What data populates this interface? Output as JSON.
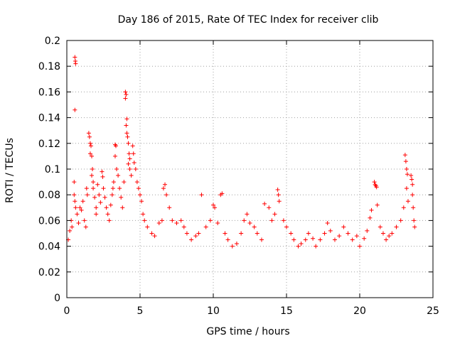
{
  "chart_data": {
    "type": "scatter",
    "title": "Day 186 of 2015, Rate Of TEC Index for receiver clib",
    "xlabel": "GPS time / hours",
    "ylabel": "ROTI / TECUs",
    "xlim": [
      0,
      25
    ],
    "ylim": [
      0,
      0.2
    ],
    "xticks": [
      0,
      5,
      10,
      15,
      20,
      25
    ],
    "yticks": [
      0,
      0.02,
      0.04,
      0.06,
      0.08,
      0.1,
      0.12,
      0.14,
      0.16,
      0.18,
      0.2
    ],
    "grid": true,
    "marker": "plus",
    "color": "#ff0000",
    "series": [
      {
        "points": [
          [
            0.1,
            0.045
          ],
          [
            0.2,
            0.052
          ],
          [
            0.3,
            0.06
          ],
          [
            0.35,
            0.055
          ],
          [
            0.5,
            0.09
          ],
          [
            0.5,
            0.08
          ],
          [
            0.55,
            0.075
          ],
          [
            0.55,
            0.187
          ],
          [
            0.58,
            0.184
          ],
          [
            0.6,
            0.182
          ],
          [
            0.55,
            0.146
          ],
          [
            0.6,
            0.07
          ],
          [
            0.7,
            0.065
          ],
          [
            0.8,
            0.058
          ],
          [
            0.9,
            0.07
          ],
          [
            1.0,
            0.068
          ],
          [
            1.1,
            0.075
          ],
          [
            1.2,
            0.06
          ],
          [
            1.3,
            0.055
          ],
          [
            1.35,
            0.085
          ],
          [
            1.4,
            0.08
          ],
          [
            1.5,
            0.128
          ],
          [
            1.55,
            0.125
          ],
          [
            1.6,
            0.12
          ],
          [
            1.65,
            0.118
          ],
          [
            1.6,
            0.112
          ],
          [
            1.7,
            0.11
          ],
          [
            1.75,
            0.1
          ],
          [
            1.7,
            0.095
          ],
          [
            1.8,
            0.09
          ],
          [
            1.8,
            0.085
          ],
          [
            1.9,
            0.078
          ],
          [
            2.0,
            0.07
          ],
          [
            2.0,
            0.065
          ],
          [
            2.1,
            0.088
          ],
          [
            2.2,
            0.08
          ],
          [
            2.3,
            0.074
          ],
          [
            2.4,
            0.098
          ],
          [
            2.45,
            0.094
          ],
          [
            2.5,
            0.085
          ],
          [
            2.6,
            0.078
          ],
          [
            2.7,
            0.07
          ],
          [
            2.8,
            0.065
          ],
          [
            2.9,
            0.06
          ],
          [
            3.0,
            0.072
          ],
          [
            3.1,
            0.08
          ],
          [
            3.15,
            0.085
          ],
          [
            3.2,
            0.09
          ],
          [
            3.3,
            0.119
          ],
          [
            3.35,
            0.118
          ],
          [
            3.3,
            0.11
          ],
          [
            3.4,
            0.1
          ],
          [
            3.5,
            0.095
          ],
          [
            3.6,
            0.085
          ],
          [
            3.7,
            0.078
          ],
          [
            3.8,
            0.07
          ],
          [
            3.9,
            0.09
          ],
          [
            4.0,
            0.16
          ],
          [
            4.05,
            0.158
          ],
          [
            4.0,
            0.155
          ],
          [
            4.1,
            0.139
          ],
          [
            4.05,
            0.134
          ],
          [
            4.1,
            0.128
          ],
          [
            4.15,
            0.125
          ],
          [
            4.2,
            0.12
          ],
          [
            4.25,
            0.112
          ],
          [
            4.3,
            0.108
          ],
          [
            4.2,
            0.104
          ],
          [
            4.3,
            0.1
          ],
          [
            4.4,
            0.095
          ],
          [
            4.5,
            0.118
          ],
          [
            4.55,
            0.112
          ],
          [
            4.6,
            0.105
          ],
          [
            4.7,
            0.1
          ],
          [
            4.8,
            0.09
          ],
          [
            4.9,
            0.085
          ],
          [
            5.0,
            0.08
          ],
          [
            5.1,
            0.075
          ],
          [
            5.2,
            0.065
          ],
          [
            5.3,
            0.06
          ],
          [
            5.5,
            0.055
          ],
          [
            5.8,
            0.05
          ],
          [
            6.0,
            0.048
          ],
          [
            6.3,
            0.058
          ],
          [
            6.5,
            0.06
          ],
          [
            6.6,
            0.085
          ],
          [
            6.7,
            0.088
          ],
          [
            6.8,
            0.08
          ],
          [
            7.0,
            0.07
          ],
          [
            7.2,
            0.06
          ],
          [
            7.5,
            0.058
          ],
          [
            7.8,
            0.06
          ],
          [
            8.0,
            0.055
          ],
          [
            8.2,
            0.05
          ],
          [
            8.5,
            0.045
          ],
          [
            8.8,
            0.048
          ],
          [
            9.0,
            0.05
          ],
          [
            9.2,
            0.08
          ],
          [
            9.5,
            0.055
          ],
          [
            9.8,
            0.06
          ],
          [
            10.0,
            0.072
          ],
          [
            10.1,
            0.07
          ],
          [
            10.3,
            0.058
          ],
          [
            10.5,
            0.08
          ],
          [
            10.6,
            0.081
          ],
          [
            10.8,
            0.05
          ],
          [
            11.0,
            0.045
          ],
          [
            11.3,
            0.04
          ],
          [
            11.6,
            0.042
          ],
          [
            11.9,
            0.05
          ],
          [
            12.1,
            0.06
          ],
          [
            12.3,
            0.065
          ],
          [
            12.5,
            0.058
          ],
          [
            12.8,
            0.055
          ],
          [
            13.0,
            0.05
          ],
          [
            13.3,
            0.045
          ],
          [
            13.5,
            0.073
          ],
          [
            13.8,
            0.07
          ],
          [
            14.0,
            0.06
          ],
          [
            14.2,
            0.065
          ],
          [
            14.4,
            0.084
          ],
          [
            14.45,
            0.08
          ],
          [
            14.5,
            0.075
          ],
          [
            14.8,
            0.06
          ],
          [
            15.0,
            0.055
          ],
          [
            15.3,
            0.05
          ],
          [
            15.5,
            0.045
          ],
          [
            15.8,
            0.04
          ],
          [
            16.0,
            0.042
          ],
          [
            16.3,
            0.045
          ],
          [
            16.5,
            0.05
          ],
          [
            16.8,
            0.046
          ],
          [
            17.0,
            0.04
          ],
          [
            17.3,
            0.045
          ],
          [
            17.6,
            0.05
          ],
          [
            17.8,
            0.058
          ],
          [
            18.0,
            0.052
          ],
          [
            18.3,
            0.045
          ],
          [
            18.6,
            0.048
          ],
          [
            18.9,
            0.055
          ],
          [
            19.2,
            0.05
          ],
          [
            19.5,
            0.045
          ],
          [
            19.8,
            0.048
          ],
          [
            20.0,
            0.04
          ],
          [
            20.3,
            0.046
          ],
          [
            20.5,
            0.052
          ],
          [
            20.7,
            0.062
          ],
          [
            20.8,
            0.068
          ],
          [
            21.0,
            0.09
          ],
          [
            21.05,
            0.088
          ],
          [
            21.1,
            0.087
          ],
          [
            21.15,
            0.086
          ],
          [
            21.2,
            0.072
          ],
          [
            21.4,
            0.055
          ],
          [
            21.6,
            0.05
          ],
          [
            21.8,
            0.045
          ],
          [
            22.0,
            0.048
          ],
          [
            22.2,
            0.05
          ],
          [
            22.5,
            0.055
          ],
          [
            22.8,
            0.06
          ],
          [
            23.0,
            0.07
          ],
          [
            23.1,
            0.111
          ],
          [
            23.15,
            0.106
          ],
          [
            23.2,
            0.1
          ],
          [
            23.25,
            0.096
          ],
          [
            23.2,
            0.085
          ],
          [
            23.3,
            0.075
          ],
          [
            23.5,
            0.095
          ],
          [
            23.55,
            0.092
          ],
          [
            23.6,
            0.088
          ],
          [
            23.6,
            0.08
          ],
          [
            23.65,
            0.07
          ],
          [
            23.7,
            0.06
          ],
          [
            23.75,
            0.055
          ]
        ]
      }
    ]
  }
}
